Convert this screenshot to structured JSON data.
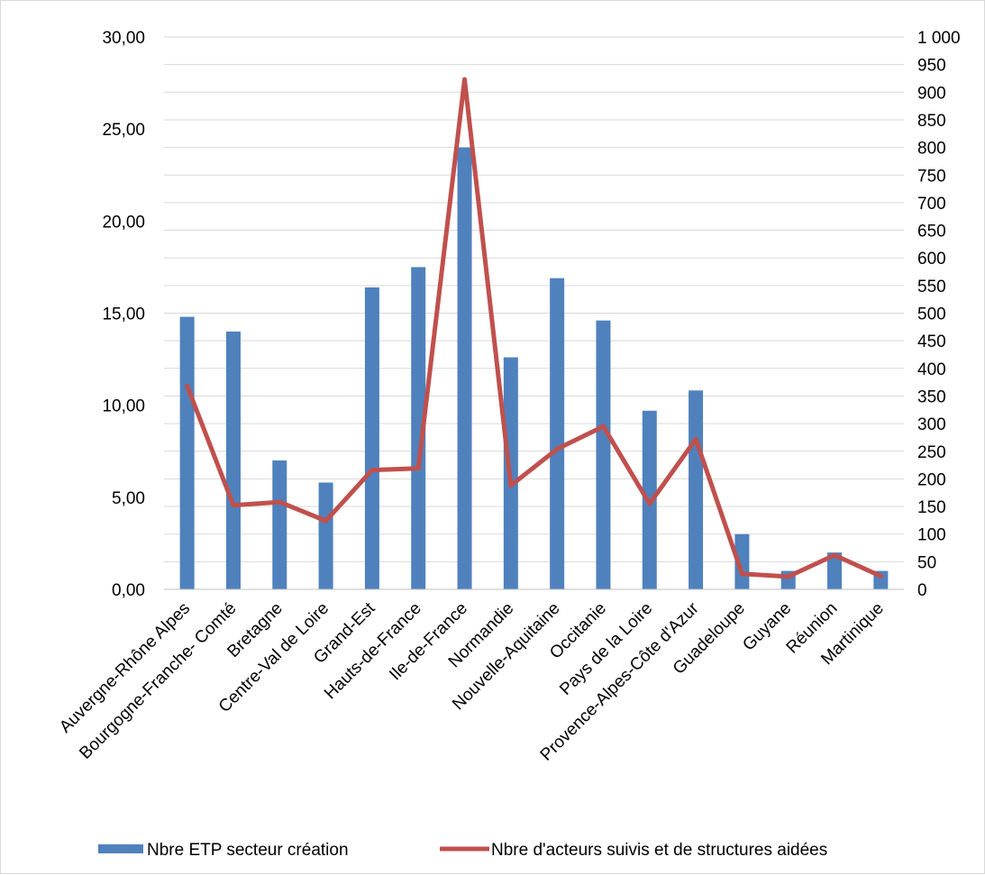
{
  "chart_data": {
    "type": "bar",
    "title": "",
    "xlabel": "",
    "ylabel": "",
    "categories": [
      "Auvergne-Rhône Alpes",
      "Bourgogne-Franche- Comté",
      "Bretagne",
      "Centre-Val de Loire",
      "Grand-Est",
      "Hauts-de-France",
      "Ile-de-France",
      "Normandie",
      "Nouvelle-Aquitaine",
      "Occitanie",
      "Pays de la Loire",
      "Provence-Alpes-Côte d'Azur",
      "Guadeloupe",
      "Guyane",
      "Réunion",
      "Martinique"
    ],
    "series": [
      {
        "name": "Nbre ETP secteur création",
        "type": "bar",
        "axis": "left",
        "color": "#4f81bd",
        "values": [
          14.8,
          14.0,
          7.0,
          5.8,
          16.4,
          17.5,
          24.0,
          12.6,
          16.9,
          14.6,
          9.7,
          10.8,
          3.0,
          1.0,
          2.0,
          1.0
        ]
      },
      {
        "name": "Nbre d'acteurs suivis et de structures aidées",
        "type": "line",
        "axis": "right",
        "color": "#c0504d",
        "values": [
          368,
          152,
          158,
          124,
          216,
          219,
          923,
          188,
          254,
          295,
          155,
          272,
          28,
          23,
          62,
          24
        ]
      }
    ],
    "y_left": {
      "min": 0,
      "max": 30,
      "ticks": [
        "0,00",
        "5,00",
        "10,00",
        "15,00",
        "20,00",
        "25,00",
        "30,00"
      ]
    },
    "y_right": {
      "min": 0,
      "max": 1000,
      "ticks": [
        "0",
        "50",
        "100",
        "150",
        "200",
        "250",
        "300",
        "350",
        "400",
        "450",
        "500",
        "550",
        "600",
        "650",
        "700",
        "750",
        "800",
        "850",
        "900",
        "950",
        "1 000"
      ]
    },
    "grid": true,
    "legend": "bottom"
  }
}
